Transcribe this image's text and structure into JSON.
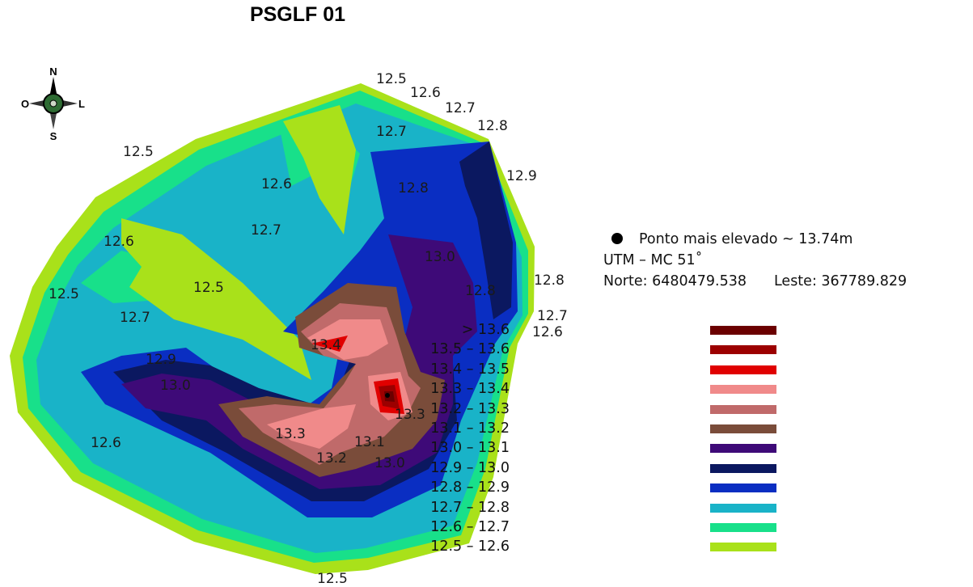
{
  "title": "PSGLF 01",
  "compass": {
    "n": "N",
    "s": "S",
    "w": "O",
    "e": "L",
    "icon": "compass-rose-icon"
  },
  "highest_point": {
    "label": "Ponto mais elevado ~ 13.74m",
    "projection": "UTM  –  MC 51˚",
    "norte_label": "Norte: 6480479.538",
    "leste_label": "Leste: 367789.829"
  },
  "legend": [
    {
      "label": "> 13.6",
      "color": "#6b0000"
    },
    {
      "label": "13.5  –  13.6",
      "color": "#9c0000"
    },
    {
      "label": "13.4  –  13.5",
      "color": "#e00000"
    },
    {
      "label": "13.3  –  13.4",
      "color": "#f08a8a"
    },
    {
      "label": "13.2  –  13.3",
      "color": "#c06a6a"
    },
    {
      "label": "13.1  –  13.2",
      "color": "#7a4c3a"
    },
    {
      "label": "13.0  –  13.1",
      "color": "#3e0a78"
    },
    {
      "label": "12.9  –  13.0",
      "color": "#0b1860"
    },
    {
      "label": "12.8  –  12.9",
      "color": "#0a2ec2"
    },
    {
      "label": "12.7  –  12.8",
      "color": "#19b3c8"
    },
    {
      "label": "12.6  –  12.7",
      "color": "#18e08a"
    },
    {
      "label": "12.5  –  12.6",
      "color": "#a9e11a"
    }
  ],
  "contour_labels": [
    "12.5",
    "12.6",
    "12.7",
    "12.8",
    "12.7",
    "12.9",
    "12.5",
    "12.6",
    "12.8",
    "12.7",
    "12.6",
    "12.8",
    "12.5",
    "12.5",
    "12.7",
    "12.8",
    "12.7",
    "12.6",
    "13.4",
    "12.9",
    "13.0",
    "13.3",
    "13.3",
    "13.1",
    "13.2",
    "12.6",
    "12.5",
    "13.0",
    "13.0"
  ]
}
